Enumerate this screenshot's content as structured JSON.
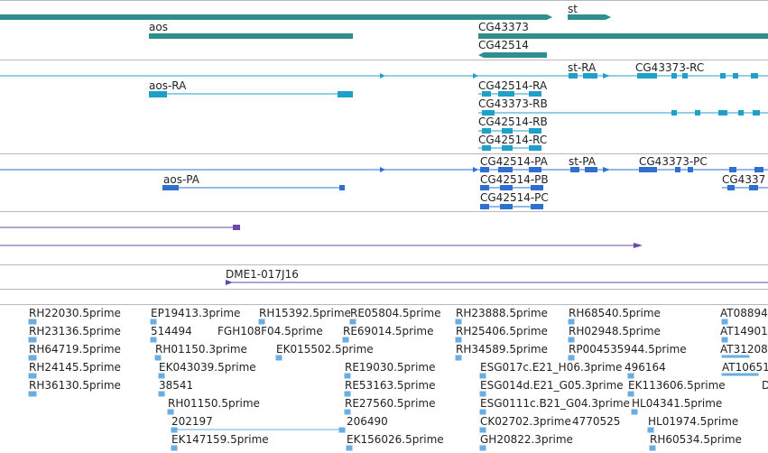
{
  "colors": {
    "genes": "#2f8f8f",
    "rna": "#1fa0c8",
    "protein": "#2f6fd0",
    "est": "#6a4aa8",
    "clone": "#5b4bb0",
    "ests": "#6aaee0",
    "separator": "#b9b9b9"
  },
  "gene_track": {
    "labels": [
      "st",
      "aos",
      "CG43373",
      "CG42514"
    ]
  },
  "transcript_track": {
    "labels": [
      "st-RA",
      "CG43373-RC",
      "aos-RA",
      "CG42514-RA",
      "CG43373-RB",
      "CG42514-RB",
      "CG42514-RC"
    ]
  },
  "protein_track": {
    "labels": [
      "st-PA",
      "CG43373-PC",
      "CG42514-PA",
      "aos-PA",
      "CG42514-PB",
      "CG42514-PC",
      "CG4337"
    ]
  },
  "clone_track": {
    "label": "DME1-017J16"
  },
  "est_track": {
    "labels": [
      "RH22030.5prime",
      "RH23136.5prime",
      "RH64719.5prime",
      "RH24145.5prime",
      "RH36130.5prime",
      "EP19413.3prime",
      "514494",
      "RH01150.3prime",
      "EK043039.5prime",
      "38541",
      "RH01150.5prime",
      "202197",
      "EK147159.5prime",
      "RH15392.5prime",
      "FGH108F04.5prime",
      "EK015502.5prime",
      "RE05804.5prime",
      "RE69014.5prime",
      "RE19030.5prime",
      "RE53163.5prime",
      "RE27560.5prime",
      "206490",
      "EK156026.5prime",
      "RH23888.5prime",
      "RH25406.5prime",
      "RH34589.5prime",
      "ESG017c.E21_H06.3prime",
      "ESG014d.E21_G05.3prime",
      "ESG0111c.B21_G04.3prime",
      "CK02702.3prime",
      "4770525",
      "GH20822.3prime",
      "RH68540.5prime",
      "RH02948.5prime",
      "RP004535944.5prime",
      "496164",
      "EK113606.5prime",
      "HL04341.5prime",
      "HL01974.5prime",
      "RH60534.5prime",
      "AT08894",
      "AT14901",
      "AT31208",
      "AT10651",
      "D"
    ]
  }
}
